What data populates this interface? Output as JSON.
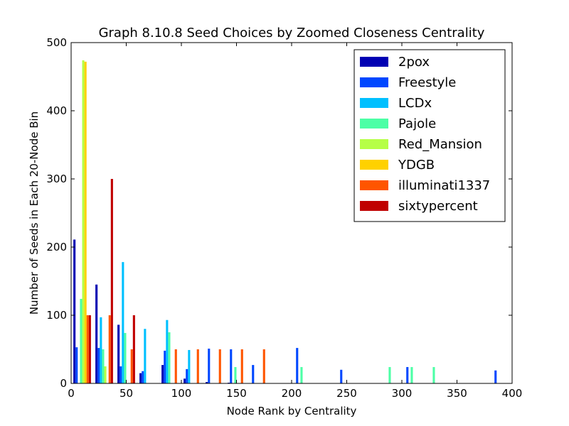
{
  "chart_data": {
    "type": "bar",
    "title": "Graph 8.10.8 Seed Choices by Zoomed Closeness Centrality",
    "xlabel": "Node Rank by Centrality",
    "ylabel": "Number of Seeds in Each 20-Node Bin",
    "xlim": [
      0,
      400
    ],
    "ylim": [
      0,
      500
    ],
    "xticks": [
      0,
      50,
      100,
      150,
      200,
      250,
      300,
      350,
      400
    ],
    "yticks": [
      0,
      100,
      200,
      300,
      400,
      500
    ],
    "grid": false,
    "legend_position": "top-right",
    "series": [
      {
        "name": "2pox",
        "color": "#0000b3",
        "points": [
          [
            3,
            211
          ],
          [
            23,
            145
          ],
          [
            43,
            86
          ],
          [
            63,
            15
          ],
          [
            83,
            27
          ],
          [
            103,
            7
          ],
          [
            123,
            2
          ],
          [
            143,
            1
          ]
        ]
      },
      {
        "name": "Freestyle",
        "color": "#0047ff",
        "points": [
          [
            5,
            53
          ],
          [
            25,
            52
          ],
          [
            45,
            25
          ],
          [
            65,
            18
          ],
          [
            85,
            48
          ],
          [
            105,
            21
          ],
          [
            125,
            51
          ],
          [
            145,
            50
          ],
          [
            165,
            27
          ],
          [
            205,
            52
          ],
          [
            245,
            20
          ],
          [
            305,
            24
          ],
          [
            385,
            19
          ]
        ]
      },
      {
        "name": "LCDx",
        "color": "#00c0ff",
        "points": [
          [
            27,
            97
          ],
          [
            47,
            178
          ],
          [
            67,
            80
          ],
          [
            87,
            93
          ],
          [
            107,
            49
          ]
        ]
      },
      {
        "name": "Pajole",
        "color": "#4dffa6",
        "points": [
          [
            9,
            124
          ],
          [
            29,
            50
          ],
          [
            49,
            74
          ],
          [
            89,
            75
          ],
          [
            149,
            24
          ],
          [
            209,
            24
          ],
          [
            289,
            24
          ],
          [
            309,
            24
          ],
          [
            329,
            24
          ]
        ]
      },
      {
        "name": "Red_Mansion",
        "color": "#b6ff47",
        "points": [
          [
            11,
            474
          ],
          [
            31,
            25
          ]
        ]
      },
      {
        "name": "YDGB",
        "color": "#ffd100",
        "points": [
          [
            13,
            472
          ]
        ]
      },
      {
        "name": "illuminati1337",
        "color": "#ff5500",
        "points": [
          [
            15,
            100
          ],
          [
            35,
            100
          ],
          [
            55,
            50
          ],
          [
            95,
            50
          ],
          [
            115,
            50
          ],
          [
            135,
            50
          ],
          [
            155,
            50
          ],
          [
            175,
            50
          ]
        ]
      },
      {
        "name": "sixtypercent",
        "color": "#c00000",
        "points": [
          [
            17,
            100
          ],
          [
            37,
            300
          ],
          [
            57,
            100
          ]
        ]
      }
    ]
  }
}
